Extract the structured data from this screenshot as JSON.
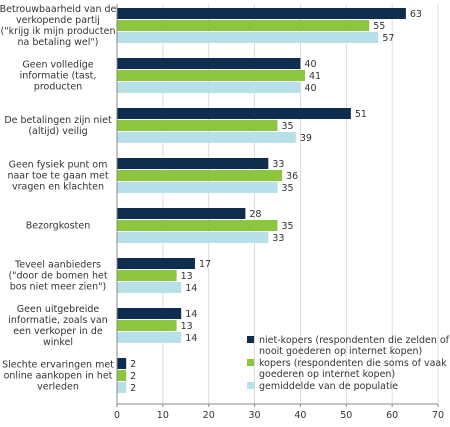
{
  "chart_data": {
    "type": "bar",
    "orientation": "horizontal",
    "categories": [
      [
        "Betrouwbaarheid van de",
        "verkopende partij",
        "(\"krijg ik mijn producten",
        "na betaling wel\")"
      ],
      [
        "Geen volledige",
        "informatie (tast,",
        "producten"
      ],
      [
        "De betalingen zijn niet",
        "(altijd) veilig"
      ],
      [
        "Geen fysiek punt om",
        "naar toe te gaan met",
        "vragen en klachten"
      ],
      [
        "Bezorgkosten"
      ],
      [
        "Teveel aanbieders",
        "(\"door de bomen het",
        "bos niet meer zien\")"
      ],
      [
        "Geen uitgebreide",
        "informatie, zoals van",
        "een verkoper in de",
        "winkel"
      ],
      [
        "Slechte ervaringen met",
        "online aankopen in het",
        "verleden"
      ]
    ],
    "series": [
      {
        "name": [
          "niet-kopers (respondenten die zelden of",
          "nooit goederen op internet kopen)"
        ],
        "color": "#0f2d4f",
        "values": [
          63,
          40,
          51,
          33,
          28,
          17,
          14,
          2
        ]
      },
      {
        "name": [
          "kopers (respondenten die soms of vaak",
          "goederen op internet kopen)"
        ],
        "color": "#8cc63f",
        "values": [
          55,
          41,
          35,
          36,
          35,
          13,
          13,
          2
        ]
      },
      {
        "name": [
          "gemiddelde van de populatie"
        ],
        "color": "#b8e0e8",
        "values": [
          57,
          40,
          39,
          35,
          33,
          14,
          14,
          2
        ]
      }
    ],
    "xlim": [
      0,
      70
    ],
    "xticks": [
      0,
      10,
      20,
      30,
      40,
      50,
      60,
      70
    ],
    "title": "",
    "xlabel": "",
    "ylabel": "",
    "grid": true,
    "legend_position": "bottom-right"
  }
}
